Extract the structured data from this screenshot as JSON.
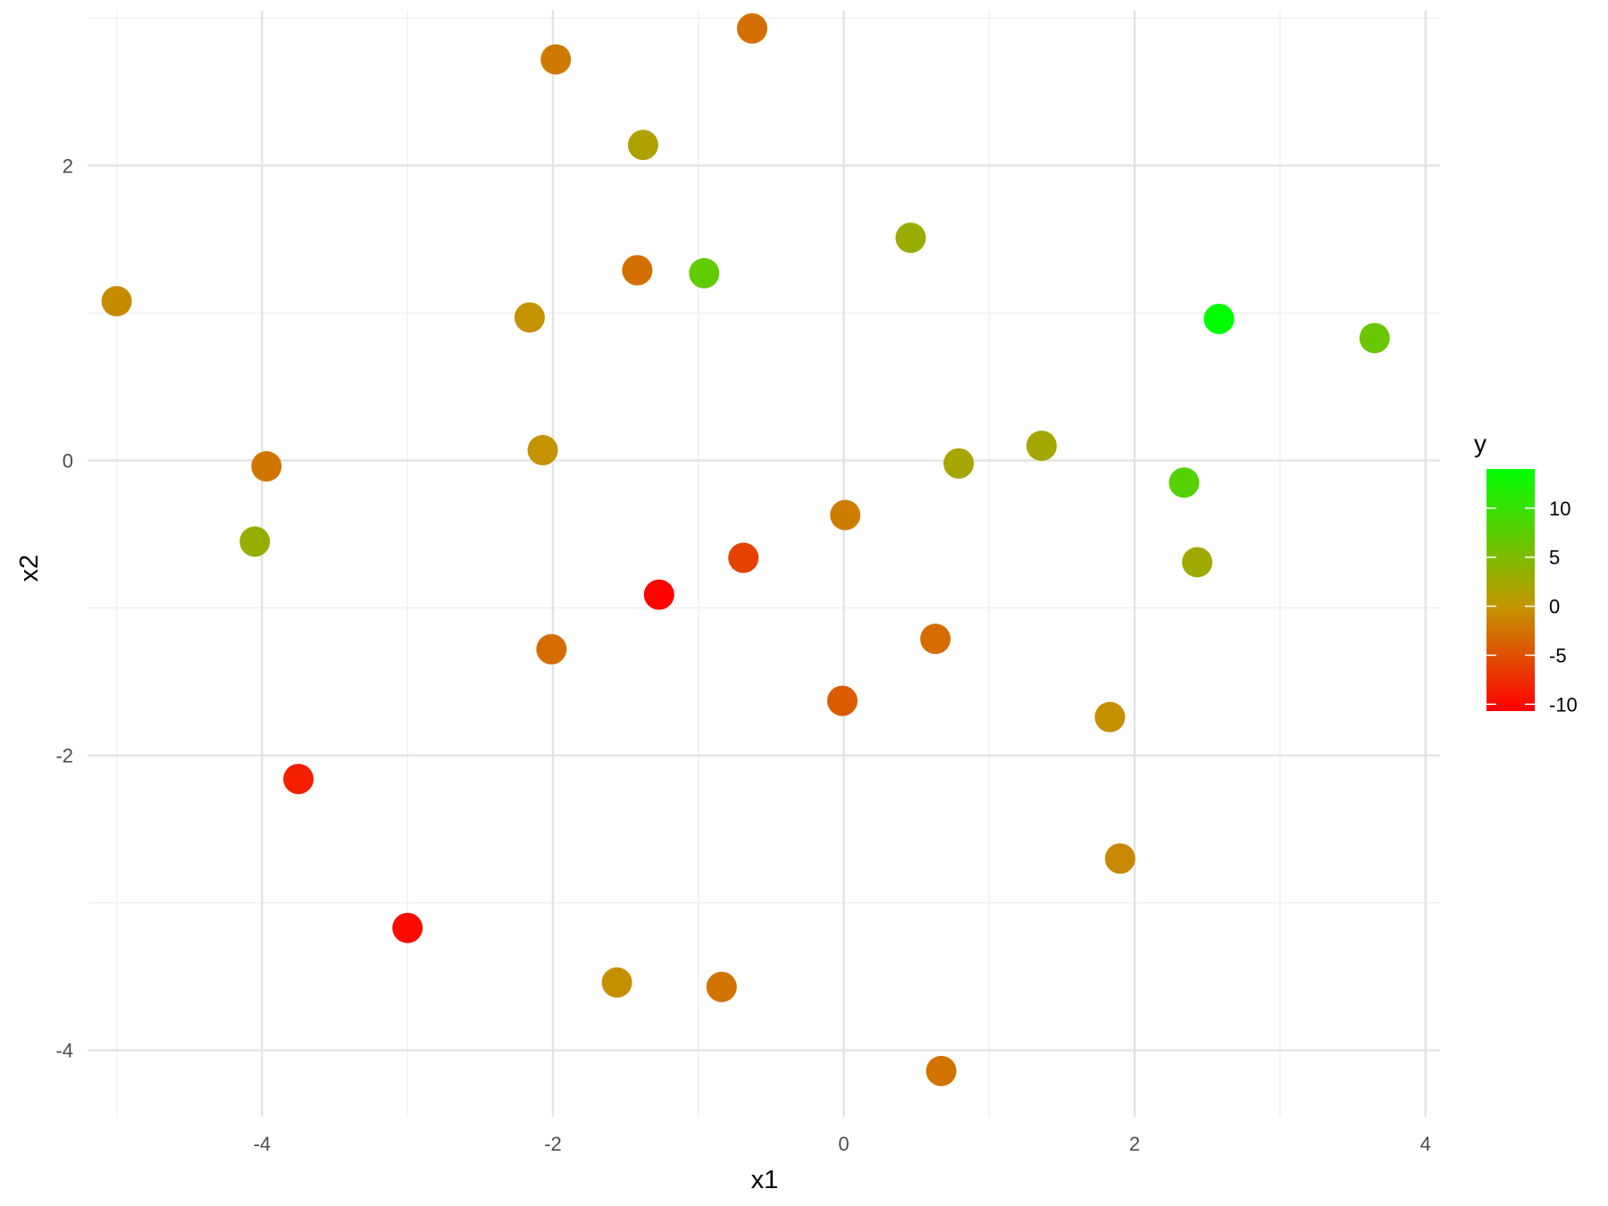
{
  "chart_data": {
    "type": "scatter",
    "title": "",
    "xlabel": "x1",
    "ylabel": "x2",
    "xlim": [
      -5.2,
      4.1
    ],
    "ylim": [
      -4.45,
      3.05
    ],
    "x_ticks": [
      -4,
      -2,
      0,
      2,
      4
    ],
    "y_ticks": [
      -4,
      -2,
      0,
      2
    ],
    "grid": true,
    "legend": {
      "title": "y",
      "placement": "right",
      "type": "colorbar",
      "range": [
        -10.7,
        14
      ],
      "ticks": [
        10,
        5,
        0,
        -5,
        -10
      ],
      "low_color": "#ff0000",
      "mid_color": "#c39600",
      "high_color": "#00ff00"
    },
    "points": [
      {
        "x": -5.0,
        "y": 1.08,
        "value": -0.8
      },
      {
        "x": -3.97,
        "y": -0.04,
        "value": -2.3
      },
      {
        "x": -4.05,
        "y": -0.55,
        "value": 3.2
      },
      {
        "x": -3.75,
        "y": -2.16,
        "value": -8.5
      },
      {
        "x": -3.0,
        "y": -3.17,
        "value": -9.8
      },
      {
        "x": -1.98,
        "y": 2.72,
        "value": -2.0
      },
      {
        "x": -0.63,
        "y": 2.93,
        "value": -2.8
      },
      {
        "x": -1.38,
        "y": 2.14,
        "value": 1.5
      },
      {
        "x": -1.42,
        "y": 1.29,
        "value": -2.8
      },
      {
        "x": -0.96,
        "y": 1.27,
        "value": 7.0
      },
      {
        "x": -2.16,
        "y": 0.97,
        "value": -0.2
      },
      {
        "x": -2.07,
        "y": 0.07,
        "value": -0.2
      },
      {
        "x": -1.27,
        "y": -0.91,
        "value": -10.5
      },
      {
        "x": -0.69,
        "y": -0.66,
        "value": -6.0
      },
      {
        "x": -2.01,
        "y": -1.28,
        "value": -3.0
      },
      {
        "x": -1.56,
        "y": -3.54,
        "value": -0.5
      },
      {
        "x": -0.84,
        "y": -3.57,
        "value": -2.5
      },
      {
        "x": 0.46,
        "y": 1.51,
        "value": 3.0
      },
      {
        "x": 0.01,
        "y": -0.37,
        "value": -1.8
      },
      {
        "x": 0.79,
        "y": -0.02,
        "value": 2.0
      },
      {
        "x": 1.36,
        "y": 0.1,
        "value": 2.3
      },
      {
        "x": 0.63,
        "y": -1.21,
        "value": -3.0
      },
      {
        "x": -0.01,
        "y": -1.63,
        "value": -4.2
      },
      {
        "x": 0.67,
        "y": -4.14,
        "value": -2.5
      },
      {
        "x": 2.58,
        "y": 0.96,
        "value": 14.0
      },
      {
        "x": 3.65,
        "y": 0.83,
        "value": 6.5
      },
      {
        "x": 2.34,
        "y": -0.15,
        "value": 8.0
      },
      {
        "x": 2.43,
        "y": -0.69,
        "value": 2.5
      },
      {
        "x": 1.83,
        "y": -1.74,
        "value": -0.5
      },
      {
        "x": 1.9,
        "y": -2.7,
        "value": -1.0
      }
    ]
  }
}
